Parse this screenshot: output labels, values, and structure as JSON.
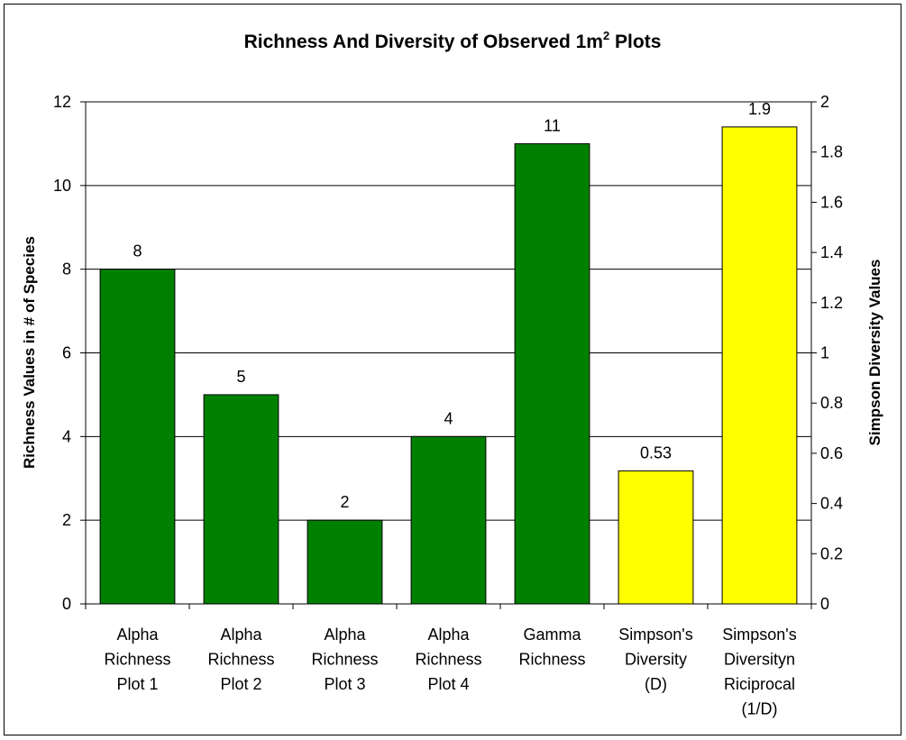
{
  "chart_data": {
    "type": "bar",
    "title": [
      "Richness And Diversity of Observed 1m",
      "2",
      " Plots"
    ],
    "y_label": "Richness Values in # of Species",
    "y2_label": "Simpson Diversity Values",
    "categories": [
      [
        "Alpha",
        "Richness",
        "Plot 1"
      ],
      [
        "Alpha",
        "Richness",
        "Plot 2"
      ],
      [
        "Alpha",
        "Richness",
        "Plot 3"
      ],
      [
        "Alpha",
        "Richness",
        "Plot 4"
      ],
      [
        "Gamma",
        "Richness"
      ],
      [
        "Simpson's",
        "Diversity",
        "(D)"
      ],
      [
        "Simpson's",
        "Diversityn",
        "Riciprocal",
        "(1/D)"
      ]
    ],
    "series": [
      {
        "color": "#008000",
        "values": [
          8,
          5,
          2,
          4,
          11,
          null,
          null
        ]
      },
      {
        "color": "#ffff00",
        "axis": "y2",
        "values": [
          null,
          null,
          null,
          null,
          null,
          0.53,
          1.9
        ]
      }
    ],
    "ylim": [
      0,
      12
    ],
    "yticks": [
      0,
      2,
      4,
      6,
      8,
      10,
      12
    ],
    "y2lim": [
      0,
      2
    ],
    "y2ticks": [
      0,
      0.2,
      0.4,
      0.6,
      0.8,
      1,
      1.2,
      1.4,
      1.6,
      1.8,
      2
    ],
    "grid": true
  }
}
